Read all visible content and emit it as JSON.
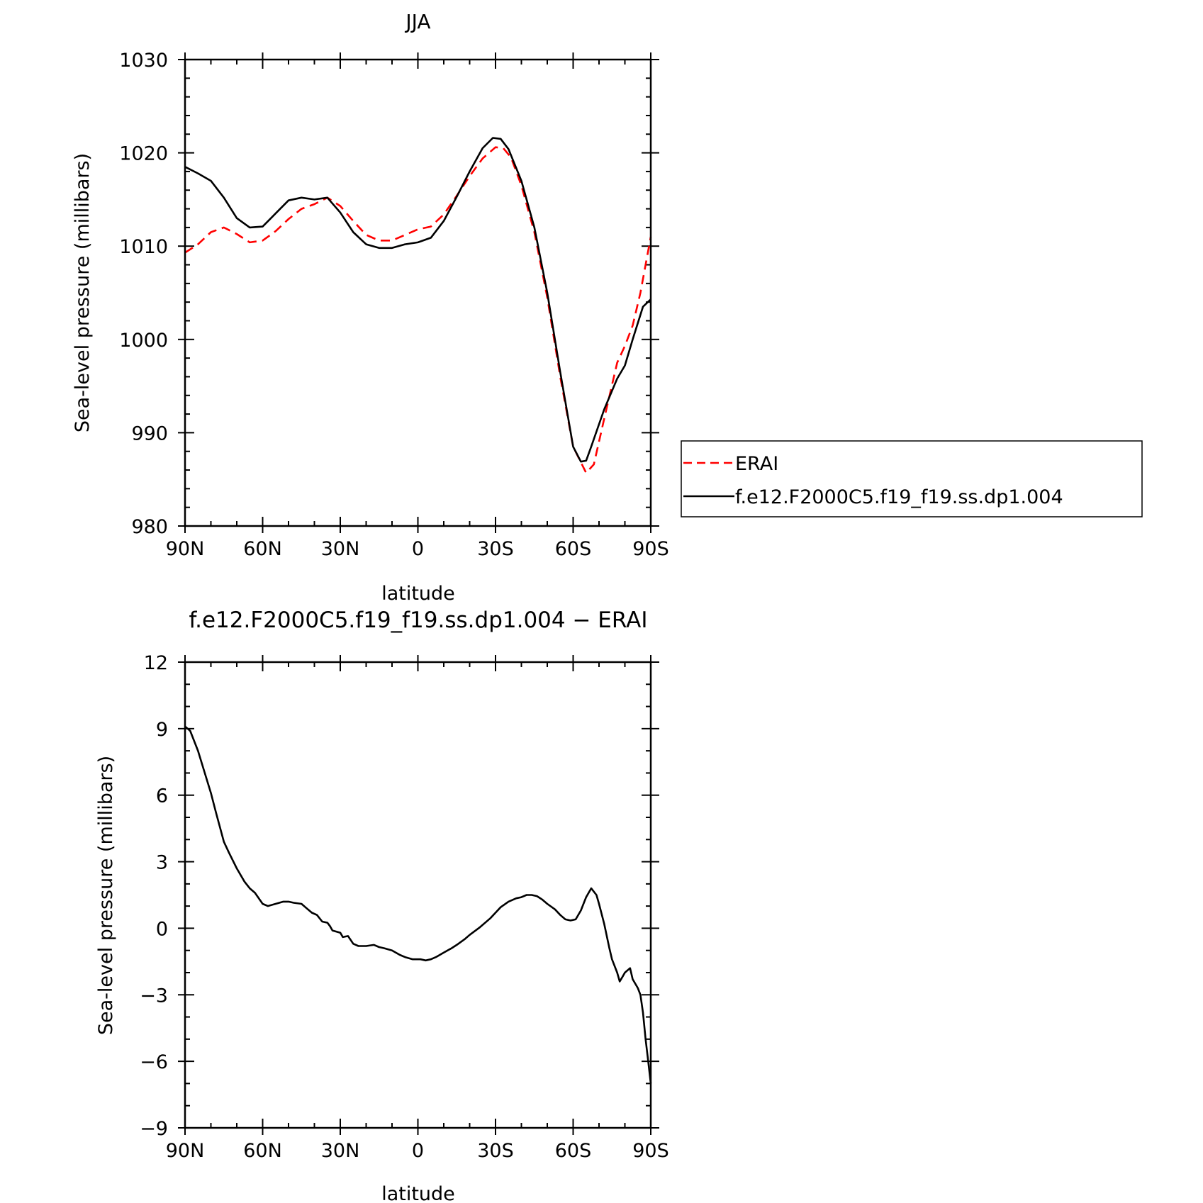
{
  "chart_data": [
    {
      "type": "line",
      "title": "JJA",
      "xlabel": "latitude",
      "ylabel": "Sea-level pressure (millibars)",
      "xlim": [
        -90,
        90
      ],
      "ylim": [
        980,
        1030
      ],
      "x_ticks": [
        -90,
        -60,
        -30,
        0,
        30,
        60,
        90
      ],
      "x_tick_labels": [
        "90N",
        "60N",
        "30N",
        "0",
        "30S",
        "60S",
        "90S"
      ],
      "y_ticks": [
        980,
        990,
        1000,
        1010,
        1020,
        1030
      ],
      "y_tick_labels": [
        "980",
        "990",
        "1000",
        "1010",
        "1020",
        "1030"
      ],
      "legend": {
        "placement": "right",
        "entries": [
          "ERAI",
          "f.e12.F2000C5.f19_f19.ss.dp1.004"
        ]
      },
      "series": [
        {
          "name": "ERAI",
          "color": "#ff0000",
          "style": "dashed",
          "points": [
            [
              -90,
              1009.3
            ],
            [
              -85,
              1010.2
            ],
            [
              -80,
              1011.5
            ],
            [
              -75,
              1012.0
            ],
            [
              -70,
              1011.3
            ],
            [
              -65,
              1010.4
            ],
            [
              -60,
              1010.6
            ],
            [
              -55,
              1011.6
            ],
            [
              -50,
              1012.9
            ],
            [
              -45,
              1014.0
            ],
            [
              -40,
              1014.5
            ],
            [
              -35,
              1015.2
            ],
            [
              -30,
              1014.3
            ],
            [
              -25,
              1012.7
            ],
            [
              -20,
              1011.2
            ],
            [
              -15,
              1010.6
            ],
            [
              -10,
              1010.6
            ],
            [
              -5,
              1011.2
            ],
            [
              0,
              1011.8
            ],
            [
              5,
              1012.1
            ],
            [
              10,
              1013.4
            ],
            [
              15,
              1015.4
            ],
            [
              20,
              1017.5
            ],
            [
              25,
              1019.4
            ],
            [
              30,
              1020.6
            ],
            [
              33,
              1020.5
            ],
            [
              36,
              1019.5
            ],
            [
              40,
              1016.5
            ],
            [
              45,
              1011.5
            ],
            [
              50,
              1004.5
            ],
            [
              55,
              996.0
            ],
            [
              60,
              988.5
            ],
            [
              65,
              985.7
            ],
            [
              68,
              986.6
            ],
            [
              72,
              991.5
            ],
            [
              77,
              997.5
            ],
            [
              80,
              999.3
            ],
            [
              83,
              1001.5
            ],
            [
              86,
              1005.0
            ],
            [
              90,
              1011.0
            ]
          ]
        },
        {
          "name": "f.e12.F2000C5.f19_f19.ss.dp1.004",
          "color": "#000000",
          "style": "solid",
          "points": [
            [
              -90,
              1018.5
            ],
            [
              -85,
              1017.8
            ],
            [
              -80,
              1017.0
            ],
            [
              -75,
              1015.2
            ],
            [
              -70,
              1013.0
            ],
            [
              -65,
              1012.0
            ],
            [
              -60,
              1012.1
            ],
            [
              -55,
              1013.5
            ],
            [
              -50,
              1014.9
            ],
            [
              -45,
              1015.2
            ],
            [
              -40,
              1015.0
            ],
            [
              -35,
              1015.2
            ],
            [
              -30,
              1013.6
            ],
            [
              -25,
              1011.5
            ],
            [
              -20,
              1010.2
            ],
            [
              -15,
              1009.8
            ],
            [
              -10,
              1009.8
            ],
            [
              -5,
              1010.2
            ],
            [
              0,
              1010.4
            ],
            [
              5,
              1010.9
            ],
            [
              10,
              1012.7
            ],
            [
              15,
              1015.3
            ],
            [
              20,
              1018.0
            ],
            [
              25,
              1020.5
            ],
            [
              29,
              1021.6
            ],
            [
              32,
              1021.5
            ],
            [
              35,
              1020.4
            ],
            [
              40,
              1017.0
            ],
            [
              45,
              1012.0
            ],
            [
              50,
              1005.0
            ],
            [
              55,
              996.5
            ],
            [
              60,
              988.5
            ],
            [
              63,
              986.9
            ],
            [
              65,
              987.0
            ],
            [
              67,
              988.5
            ],
            [
              72,
              992.5
            ],
            [
              77,
              995.8
            ],
            [
              80,
              997.2
            ],
            [
              83,
              1000.0
            ],
            [
              87,
              1003.5
            ],
            [
              90,
              1004.3
            ]
          ]
        }
      ]
    },
    {
      "type": "line",
      "title": "f.e12.F2000C5.f19_f19.ss.dp1.004 − ERAI",
      "xlabel": "latitude",
      "ylabel": "Sea-level pressure (millibars)",
      "xlim": [
        -90,
        90
      ],
      "ylim": [
        -9,
        12
      ],
      "x_ticks": [
        -90,
        -60,
        -30,
        0,
        30,
        60,
        90
      ],
      "x_tick_labels": [
        "90N",
        "60N",
        "30N",
        "0",
        "30S",
        "60S",
        "90S"
      ],
      "y_ticks": [
        -9,
        -6,
        -3,
        0,
        3,
        6,
        9,
        12
      ],
      "y_tick_labels": [
        "−9",
        "−6",
        "−3",
        "0",
        "3",
        "6",
        "9",
        "12"
      ],
      "series": [
        {
          "color": "#000000",
          "style": "solid",
          "points": [
            [
              -90,
              9.1
            ],
            [
              -88,
              8.9
            ],
            [
              -85,
              8.0
            ],
            [
              -80,
              6.1
            ],
            [
              -78,
              5.2
            ],
            [
              -75,
              3.9
            ],
            [
              -73,
              3.4
            ],
            [
              -70,
              2.7
            ],
            [
              -67,
              2.1
            ],
            [
              -65,
              1.8
            ],
            [
              -63,
              1.6
            ],
            [
              -60,
              1.1
            ],
            [
              -58,
              1.0
            ],
            [
              -55,
              1.1
            ],
            [
              -52,
              1.2
            ],
            [
              -50,
              1.2
            ],
            [
              -48,
              1.15
            ],
            [
              -45,
              1.1
            ],
            [
              -43,
              0.9
            ],
            [
              -41,
              0.7
            ],
            [
              -39,
              0.6
            ],
            [
              -37,
              0.3
            ],
            [
              -35,
              0.25
            ],
            [
              -34,
              0.1
            ],
            [
              -33,
              -0.1
            ],
            [
              -30,
              -0.2
            ],
            [
              -29,
              -0.4
            ],
            [
              -27,
              -0.35
            ],
            [
              -25,
              -0.7
            ],
            [
              -23,
              -0.8
            ],
            [
              -20,
              -0.8
            ],
            [
              -17,
              -0.75
            ],
            [
              -15,
              -0.85
            ],
            [
              -13,
              -0.9
            ],
            [
              -10,
              -1.0
            ],
            [
              -7,
              -1.2
            ],
            [
              -5,
              -1.3
            ],
            [
              -2,
              -1.4
            ],
            [
              1,
              -1.4
            ],
            [
              3,
              -1.45
            ],
            [
              5,
              -1.4
            ],
            [
              7,
              -1.3
            ],
            [
              10,
              -1.1
            ],
            [
              13,
              -0.9
            ],
            [
              15,
              -0.75
            ],
            [
              18,
              -0.5
            ],
            [
              20,
              -0.3
            ],
            [
              24,
              0.05
            ],
            [
              28,
              0.45
            ],
            [
              30,
              0.7
            ],
            [
              32,
              0.95
            ],
            [
              35,
              1.2
            ],
            [
              38,
              1.35
            ],
            [
              40,
              1.4
            ],
            [
              42,
              1.5
            ],
            [
              44,
              1.5
            ],
            [
              46,
              1.45
            ],
            [
              48,
              1.3
            ],
            [
              50,
              1.1
            ],
            [
              53,
              0.85
            ],
            [
              55,
              0.6
            ],
            [
              57,
              0.4
            ],
            [
              59,
              0.35
            ],
            [
              61,
              0.4
            ],
            [
              63,
              0.8
            ],
            [
              65,
              1.4
            ],
            [
              67,
              1.8
            ],
            [
              69,
              1.5
            ],
            [
              70,
              1.1
            ],
            [
              72,
              0.2
            ],
            [
              74,
              -0.9
            ],
            [
              75,
              -1.4
            ],
            [
              77,
              -2.0
            ],
            [
              78,
              -2.4
            ],
            [
              79,
              -2.2
            ],
            [
              80,
              -2.0
            ],
            [
              82,
              -1.8
            ],
            [
              83,
              -2.3
            ],
            [
              85,
              -2.7
            ],
            [
              86,
              -3.0
            ],
            [
              87,
              -3.8
            ],
            [
              88,
              -5.0
            ],
            [
              89,
              -6.0
            ],
            [
              90,
              -7.0
            ]
          ]
        }
      ]
    }
  ]
}
